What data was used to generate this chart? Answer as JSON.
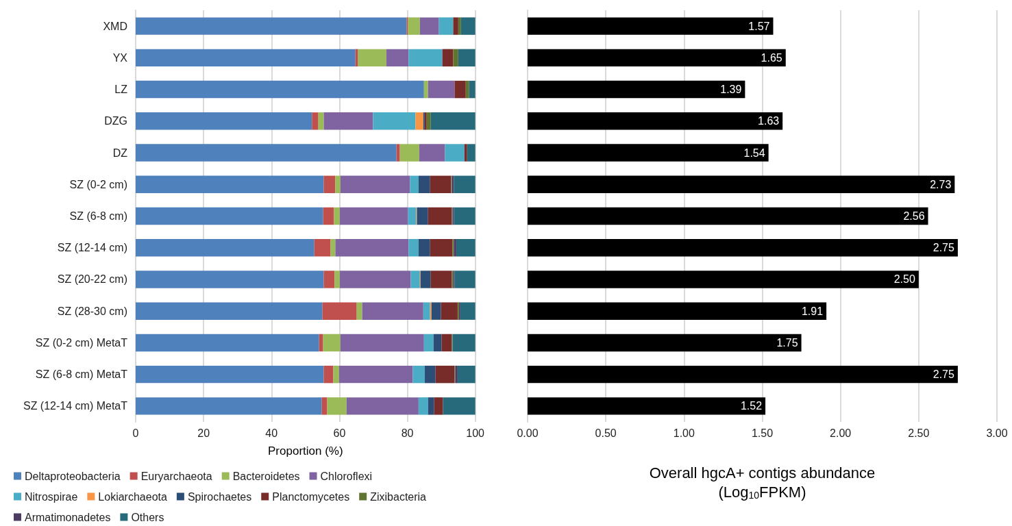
{
  "chart_data": [
    {
      "type": "bar",
      "orientation": "horizontal",
      "stacked": true,
      "xlabel": "Proportion (%)",
      "categories": [
        "XMD",
        "YX",
        "LZ",
        "DZG",
        "DZ",
        "SZ (0-2 cm)",
        "SZ (6-8 cm)",
        "SZ (12-14 cm)",
        "SZ (20-22 cm)",
        "SZ (28-30 cm)",
        "SZ (0-2 cm) MetaT",
        "SZ (6-8 cm) MetaT",
        "SZ (12-14 cm) MetaT"
      ],
      "series": [
        {
          "name": "Deltaproteobacteria",
          "color": "#4f81bd",
          "values": [
            79.8,
            64.7,
            84.9,
            51.9,
            76.8,
            55.4,
            55.2,
            52.6,
            55.4,
            55.0,
            54.0,
            55.4,
            54.8
          ]
        },
        {
          "name": "Euryarchaeota",
          "color": "#c0504d",
          "values": [
            0.4,
            0.8,
            0,
            1.9,
            1.0,
            3.4,
            3.2,
            4.8,
            3.2,
            10.1,
            1.2,
            2.8,
            1.6
          ]
        },
        {
          "name": "Bacteroidetes",
          "color": "#9bbb59",
          "values": [
            3.5,
            8.3,
            1.2,
            1.6,
            5.7,
            1.5,
            1.7,
            1.4,
            1.5,
            1.6,
            5.1,
            1.7,
            5.7
          ]
        },
        {
          "name": "Chloroflexi",
          "color": "#8064a2",
          "values": [
            5.6,
            6.6,
            7.8,
            14.5,
            7.6,
            20.5,
            20.1,
            21.6,
            20.9,
            18.0,
            24.6,
            21.7,
            21.2
          ]
        },
        {
          "name": "Nitrospirae",
          "color": "#4bacc6",
          "values": [
            4.2,
            9.9,
            0,
            12.5,
            5.7,
            2.5,
            2.4,
            2.9,
            2.7,
            2.0,
            2.8,
            3.5,
            2.8
          ]
        },
        {
          "name": "Lokiarchaeota",
          "color": "#f79646",
          "values": [
            0,
            0,
            0,
            2.3,
            0,
            0,
            0.2,
            0,
            0.2,
            0.4,
            0,
            0,
            0
          ]
        },
        {
          "name": "Spirochaetes",
          "color": "#2c4d75",
          "values": [
            0,
            0,
            0,
            0.4,
            0,
            3.4,
            3.3,
            3.4,
            3.0,
            2.8,
            2.4,
            3.2,
            1.8
          ]
        },
        {
          "name": "Planctomycetes",
          "color": "#772c2a",
          "values": [
            1.5,
            3.2,
            3.3,
            0.6,
            0.8,
            6.2,
            7.0,
            6.6,
            6.2,
            4.9,
            3.0,
            5.6,
            2.6
          ]
        },
        {
          "name": "Zixibacteria",
          "color": "#5f7530",
          "values": [
            0.8,
            1.5,
            1.0,
            1.2,
            0,
            0.2,
            0.2,
            0.4,
            0.4,
            0.4,
            0.2,
            0.2,
            0
          ]
        },
        {
          "name": "Armatimonadetes",
          "color": "#4d3b62",
          "values": [
            0,
            0,
            0,
            0,
            0,
            0.6,
            0.4,
            0.7,
            0.4,
            0.4,
            0,
            0.7,
            0
          ]
        },
        {
          "name": "Others",
          "color": "#276a7c",
          "values": [
            4.2,
            5.0,
            1.8,
            13.1,
            2.4,
            6.3,
            6.3,
            5.6,
            6.1,
            4.4,
            6.7,
            5.2,
            9.5
          ]
        }
      ],
      "xlim": [
        0,
        100
      ],
      "xticks": [
        0,
        20,
        40,
        60,
        80,
        100
      ],
      "grid": "x",
      "legend": "bottom"
    },
    {
      "type": "bar",
      "orientation": "horizontal",
      "xlabel": "Overall hgcA+ contigs abundance\n(Log$_{10}$FPKM)",
      "categories": [
        null,
        null,
        null,
        null,
        null,
        null,
        null,
        null,
        null,
        null,
        null,
        null,
        null
      ],
      "values": [
        1.57,
        1.65,
        1.39,
        1.63,
        1.54,
        2.73,
        2.56,
        2.75,
        2.5,
        1.91,
        1.75,
        2.75,
        1.52
      ],
      "value_labels": [
        "1.57",
        "1.65",
        "1.39",
        "1.63",
        "1.54",
        "2.73",
        "2.56",
        "2.75",
        "2.50",
        "1.91",
        "1.75",
        "2.75",
        "1.52"
      ],
      "color": "#000000",
      "xlim": [
        0,
        3
      ],
      "xticks": [
        {
          "value": 0,
          "label": "0.00"
        },
        {
          "value": 0.5,
          "label": "0.50"
        },
        {
          "value": 1,
          "label": "1.00"
        },
        {
          "value": 1.5,
          "label": "1.50"
        },
        {
          "value": 2,
          "label": "2.00"
        },
        {
          "value": 2.5,
          "label": "2.50"
        },
        {
          "value": 3,
          "label": "3.00"
        }
      ],
      "grid": "x"
    }
  ]
}
